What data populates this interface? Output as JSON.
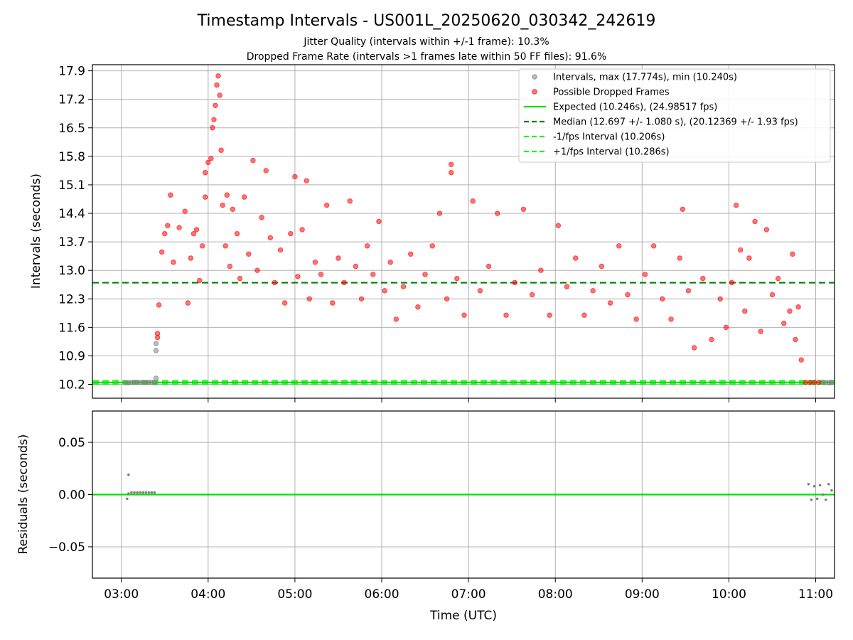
{
  "figure": {
    "title": "Timestamp Intervals - US001L_20250620_030342_242619",
    "subtitle_1": "Jitter Quality (intervals within +/-1 frame): 10.3%",
    "subtitle_2": "Dropped Frame Rate (intervals >1 frames late within 50 FF files): 91.6%"
  },
  "chart_data": [
    {
      "type": "scatter",
      "panel": "top",
      "xlabel": "",
      "ylabel": "Intervals (seconds)",
      "x_ticks": [
        "03:00",
        "04:00",
        "05:00",
        "06:00",
        "07:00",
        "08:00",
        "09:00",
        "10:00",
        "11:00"
      ],
      "y_ticks": [
        "10.2",
        "10.9",
        "11.6",
        "12.3",
        "13.0",
        "13.7",
        "14.4",
        "15.1",
        "15.8",
        "16.5",
        "17.2",
        "17.9"
      ],
      "xlim": [
        "02:40",
        "11:13"
      ],
      "ylim": [
        9.86,
        18.05
      ],
      "grid": true,
      "legend_position": "upper right",
      "legend": [
        {
          "label": "Intervals, max (17.774s), min (10.240s)",
          "kind": "marker",
          "color": "#808080"
        },
        {
          "label": "Possible Dropped Frames",
          "kind": "marker",
          "color": "#ff0000"
        },
        {
          "label": "Expected (10.246s), (24.98517 fps)",
          "kind": "solid",
          "color": "#00e000"
        },
        {
          "label": "Median (12.697 +/- 1.080 s), (20.12369 +/- 1.93 fps)",
          "kind": "dashed",
          "color": "#008000"
        },
        {
          "label": "-1/fps Interval (10.206s)",
          "kind": "dashed",
          "color": "#22ee22"
        },
        {
          "label": "+1/fps Interval (10.286s)",
          "kind": "dashed",
          "color": "#22ee22"
        }
      ],
      "reference_lines": {
        "expected": 10.246,
        "median": 12.697,
        "minus_1_fps": 10.206,
        "plus_1_fps": 10.286
      },
      "series": [
        {
          "name": "Intervals",
          "color": "#808080",
          "points": [
            {
              "x": "03:03",
              "y": 10.24
            },
            {
              "x": "03:05",
              "y": 10.24
            },
            {
              "x": "03:07",
              "y": 10.25
            },
            {
              "x": "03:09",
              "y": 10.25
            },
            {
              "x": "03:11",
              "y": 10.25
            },
            {
              "x": "03:13",
              "y": 10.25
            },
            {
              "x": "03:15",
              "y": 10.25
            },
            {
              "x": "03:17",
              "y": 10.25
            },
            {
              "x": "03:19",
              "y": 10.25
            },
            {
              "x": "03:21",
              "y": 10.25
            },
            {
              "x": "03:23",
              "y": 10.24
            },
            {
              "x": "03:24",
              "y": 10.35
            },
            {
              "x": "03:24",
              "y": 11.03
            },
            {
              "x": "03:24",
              "y": 11.2
            },
            {
              "x": "11:05",
              "y": 10.25
            },
            {
              "x": "11:07",
              "y": 10.25
            },
            {
              "x": "11:09",
              "y": 10.24
            },
            {
              "x": "11:11",
              "y": 10.25
            }
          ]
        },
        {
          "name": "Possible Dropped Frames",
          "color": "#ff0000",
          "points": [
            {
              "x": "03:25",
              "y": 11.35
            },
            {
              "x": "03:25",
              "y": 11.45
            },
            {
              "x": "03:26",
              "y": 12.15
            },
            {
              "x": "03:28",
              "y": 13.45
            },
            {
              "x": "03:30",
              "y": 13.9
            },
            {
              "x": "03:32",
              "y": 14.1
            },
            {
              "x": "03:34",
              "y": 14.85
            },
            {
              "x": "03:36",
              "y": 13.2
            },
            {
              "x": "03:40",
              "y": 14.05
            },
            {
              "x": "03:44",
              "y": 14.45
            },
            {
              "x": "03:46",
              "y": 12.2
            },
            {
              "x": "03:48",
              "y": 13.3
            },
            {
              "x": "03:50",
              "y": 13.9
            },
            {
              "x": "03:52",
              "y": 14.0
            },
            {
              "x": "03:54",
              "y": 12.75
            },
            {
              "x": "03:56",
              "y": 13.6
            },
            {
              "x": "03:58",
              "y": 15.4
            },
            {
              "x": "03:58",
              "y": 14.8
            },
            {
              "x": "04:00",
              "y": 15.65
            },
            {
              "x": "04:02",
              "y": 15.75
            },
            {
              "x": "04:03",
              "y": 16.5
            },
            {
              "x": "04:04",
              "y": 16.7
            },
            {
              "x": "04:05",
              "y": 17.05
            },
            {
              "x": "04:06",
              "y": 17.55
            },
            {
              "x": "04:07",
              "y": 17.774
            },
            {
              "x": "04:08",
              "y": 17.3
            },
            {
              "x": "04:09",
              "y": 15.95
            },
            {
              "x": "04:10",
              "y": 14.6
            },
            {
              "x": "04:12",
              "y": 13.6
            },
            {
              "x": "04:13",
              "y": 14.85
            },
            {
              "x": "04:15",
              "y": 13.1
            },
            {
              "x": "04:17",
              "y": 14.5
            },
            {
              "x": "04:20",
              "y": 13.9
            },
            {
              "x": "04:22",
              "y": 12.8
            },
            {
              "x": "04:25",
              "y": 14.8
            },
            {
              "x": "04:28",
              "y": 13.4
            },
            {
              "x": "04:31",
              "y": 15.7
            },
            {
              "x": "04:34",
              "y": 13.0
            },
            {
              "x": "04:37",
              "y": 14.3
            },
            {
              "x": "04:40",
              "y": 15.45
            },
            {
              "x": "04:43",
              "y": 13.8
            },
            {
              "x": "04:46",
              "y": 12.7
            },
            {
              "x": "04:50",
              "y": 13.5
            },
            {
              "x": "04:53",
              "y": 12.2
            },
            {
              "x": "04:57",
              "y": 13.9
            },
            {
              "x": "05:00",
              "y": 15.3
            },
            {
              "x": "05:02",
              "y": 12.85
            },
            {
              "x": "05:05",
              "y": 14.0
            },
            {
              "x": "05:08",
              "y": 15.2
            },
            {
              "x": "05:10",
              "y": 12.3
            },
            {
              "x": "05:14",
              "y": 13.2
            },
            {
              "x": "05:18",
              "y": 12.9
            },
            {
              "x": "05:22",
              "y": 14.6
            },
            {
              "x": "05:26",
              "y": 12.2
            },
            {
              "x": "05:30",
              "y": 13.3
            },
            {
              "x": "05:34",
              "y": 12.7
            },
            {
              "x": "05:38",
              "y": 14.7
            },
            {
              "x": "05:42",
              "y": 13.1
            },
            {
              "x": "05:46",
              "y": 12.3
            },
            {
              "x": "05:50",
              "y": 13.6
            },
            {
              "x": "05:54",
              "y": 12.9
            },
            {
              "x": "05:58",
              "y": 14.2
            },
            {
              "x": "06:02",
              "y": 12.5
            },
            {
              "x": "06:06",
              "y": 13.2
            },
            {
              "x": "06:10",
              "y": 11.8
            },
            {
              "x": "06:15",
              "y": 12.6
            },
            {
              "x": "06:20",
              "y": 13.4
            },
            {
              "x": "06:25",
              "y": 12.1
            },
            {
              "x": "06:30",
              "y": 12.9
            },
            {
              "x": "06:35",
              "y": 13.6
            },
            {
              "x": "06:40",
              "y": 14.4
            },
            {
              "x": "06:45",
              "y": 12.3
            },
            {
              "x": "06:48",
              "y": 15.6
            },
            {
              "x": "06:48",
              "y": 15.4
            },
            {
              "x": "06:52",
              "y": 12.8
            },
            {
              "x": "06:57",
              "y": 11.9
            },
            {
              "x": "07:03",
              "y": 14.7
            },
            {
              "x": "07:08",
              "y": 12.5
            },
            {
              "x": "07:14",
              "y": 13.1
            },
            {
              "x": "07:20",
              "y": 14.4
            },
            {
              "x": "07:26",
              "y": 11.9
            },
            {
              "x": "07:32",
              "y": 12.7
            },
            {
              "x": "07:38",
              "y": 14.5
            },
            {
              "x": "07:44",
              "y": 12.4
            },
            {
              "x": "07:50",
              "y": 13.0
            },
            {
              "x": "07:56",
              "y": 11.9
            },
            {
              "x": "08:02",
              "y": 14.1
            },
            {
              "x": "08:08",
              "y": 12.6
            },
            {
              "x": "08:14",
              "y": 13.3
            },
            {
              "x": "08:20",
              "y": 11.9
            },
            {
              "x": "08:26",
              "y": 12.5
            },
            {
              "x": "08:32",
              "y": 13.1
            },
            {
              "x": "08:38",
              "y": 12.2
            },
            {
              "x": "08:44",
              "y": 13.6
            },
            {
              "x": "08:50",
              "y": 12.4
            },
            {
              "x": "08:56",
              "y": 11.8
            },
            {
              "x": "09:02",
              "y": 12.9
            },
            {
              "x": "09:08",
              "y": 13.6
            },
            {
              "x": "09:14",
              "y": 12.3
            },
            {
              "x": "09:20",
              "y": 11.8
            },
            {
              "x": "09:26",
              "y": 13.3
            },
            {
              "x": "09:28",
              "y": 14.5
            },
            {
              "x": "09:32",
              "y": 12.5
            },
            {
              "x": "09:36",
              "y": 11.1
            },
            {
              "x": "09:42",
              "y": 12.8
            },
            {
              "x": "09:48",
              "y": 11.3
            },
            {
              "x": "09:54",
              "y": 12.3
            },
            {
              "x": "09:58",
              "y": 11.6
            },
            {
              "x": "10:02",
              "y": 12.7
            },
            {
              "x": "10:05",
              "y": 14.6
            },
            {
              "x": "10:08",
              "y": 13.5
            },
            {
              "x": "10:11",
              "y": 12.0
            },
            {
              "x": "10:14",
              "y": 13.3
            },
            {
              "x": "10:18",
              "y": 14.2
            },
            {
              "x": "10:22",
              "y": 11.5
            },
            {
              "x": "10:26",
              "y": 14.0
            },
            {
              "x": "10:30",
              "y": 12.4
            },
            {
              "x": "10:34",
              "y": 12.8
            },
            {
              "x": "10:38",
              "y": 11.7
            },
            {
              "x": "10:42",
              "y": 12.0
            },
            {
              "x": "10:44",
              "y": 13.4
            },
            {
              "x": "10:46",
              "y": 11.3
            },
            {
              "x": "10:48",
              "y": 12.1
            },
            {
              "x": "10:50",
              "y": 10.8
            },
            {
              "x": "10:53",
              "y": 10.25
            },
            {
              "x": "10:56",
              "y": 10.25
            },
            {
              "x": "10:59",
              "y": 10.25
            },
            {
              "x": "11:02",
              "y": 10.25
            }
          ]
        }
      ]
    },
    {
      "type": "scatter",
      "panel": "bottom",
      "xlabel": "Time (UTC)",
      "ylabel": "Residuals (seconds)",
      "x_ticks": [
        "03:00",
        "04:00",
        "05:00",
        "06:00",
        "07:00",
        "08:00",
        "09:00",
        "10:00",
        "11:00"
      ],
      "y_ticks": [
        "0.05",
        "0.00",
        "−0.05"
      ],
      "xlim": [
        "02:40",
        "11:13"
      ],
      "ylim": [
        -0.08,
        0.08
      ],
      "grid": true,
      "reference_line": 0.0,
      "series": [
        {
          "name": "Residuals",
          "color": "#808080",
          "points": [
            {
              "x": "03:04",
              "y": -0.004
            },
            {
              "x": "03:05",
              "y": 0.019
            },
            {
              "x": "03:05",
              "y": 0.001
            },
            {
              "x": "03:07",
              "y": 0.002
            },
            {
              "x": "03:09",
              "y": 0.002
            },
            {
              "x": "03:11",
              "y": 0.002
            },
            {
              "x": "03:13",
              "y": 0.002
            },
            {
              "x": "03:15",
              "y": 0.002
            },
            {
              "x": "03:17",
              "y": 0.002
            },
            {
              "x": "03:19",
              "y": 0.002
            },
            {
              "x": "03:21",
              "y": 0.002
            },
            {
              "x": "03:23",
              "y": 0.002
            },
            {
              "x": "10:55",
              "y": 0.01
            },
            {
              "x": "10:57",
              "y": -0.005
            },
            {
              "x": "10:59",
              "y": 0.008
            },
            {
              "x": "11:01",
              "y": -0.004
            },
            {
              "x": "11:03",
              "y": 0.009
            },
            {
              "x": "11:05",
              "y": 0.0
            },
            {
              "x": "11:07",
              "y": -0.005
            },
            {
              "x": "11:09",
              "y": 0.01
            },
            {
              "x": "11:11",
              "y": 0.004
            }
          ]
        }
      ]
    }
  ]
}
